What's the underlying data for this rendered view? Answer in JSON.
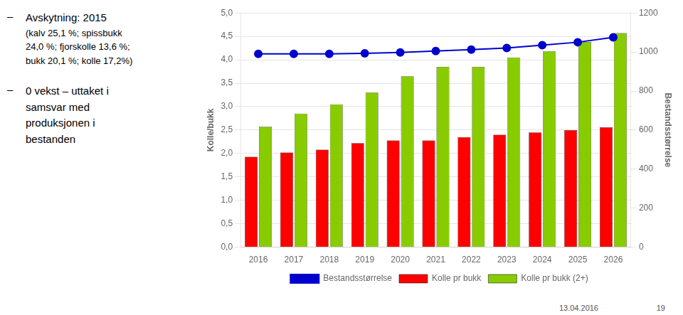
{
  "chart_data": {
    "type": "bar",
    "categories": [
      "2016",
      "2017",
      "2018",
      "2019",
      "2020",
      "2021",
      "2022",
      "2023",
      "2024",
      "2025",
      "2026"
    ],
    "series": [
      {
        "name": "Kolle pr bukk",
        "type": "bar",
        "color": "#ff0000",
        "values": [
          1.93,
          2.02,
          2.08,
          2.22,
          2.28,
          2.28,
          2.35,
          2.4,
          2.45,
          2.5,
          2.56
        ]
      },
      {
        "name": "Kolle pr bukk (2+)",
        "type": "bar",
        "color": "#88cc00",
        "values": [
          2.57,
          2.85,
          3.05,
          3.3,
          3.65,
          3.85,
          3.85,
          4.05,
          4.18,
          4.38,
          4.57
        ]
      },
      {
        "name": "Bestandsstørrelse",
        "type": "line",
        "color": "#0000cc",
        "marker": "circle",
        "axis": "y2",
        "values": [
          990,
          990,
          990,
          993,
          998,
          1005,
          1012,
          1020,
          1035,
          1050,
          1075
        ]
      }
    ],
    "ylabel": "Kolle/bukk",
    "y2label": "Bestandsstørrelse",
    "ylim": [
      0.0,
      5.0
    ],
    "yticks": [
      {
        "value": 0.0,
        "label": "0,0"
      },
      {
        "value": 0.5,
        "label": "0,5"
      },
      {
        "value": 1.0,
        "label": "1,0"
      },
      {
        "value": 1.5,
        "label": "1,5"
      },
      {
        "value": 2.0,
        "label": "2,0"
      },
      {
        "value": 2.5,
        "label": "2,5"
      },
      {
        "value": 3.0,
        "label": "3,0"
      },
      {
        "value": 3.5,
        "label": "3,5"
      },
      {
        "value": 4.0,
        "label": "4,0"
      },
      {
        "value": 4.5,
        "label": "4,5"
      },
      {
        "value": 5.0,
        "label": "5,0"
      }
    ],
    "y2lim": [
      0,
      1200
    ],
    "y2ticks": [
      0,
      200,
      400,
      600,
      800,
      1000,
      1200
    ],
    "grid": true,
    "legend": "bottom",
    "annotations": [
      [
        "–",
        "Avskytning: 2015",
        "(kalv 25,1 %; spissbukk",
        "24,0 %; fjorskolle 13,6 %;",
        "bukk 20,1 %; kolle 17,2%)"
      ],
      [
        "–",
        "0 vekst – uttaket i",
        "samsvar med",
        "produksjonen i",
        "bestanden"
      ]
    ],
    "footer": [
      "13.04.2016",
      "19"
    ]
  }
}
